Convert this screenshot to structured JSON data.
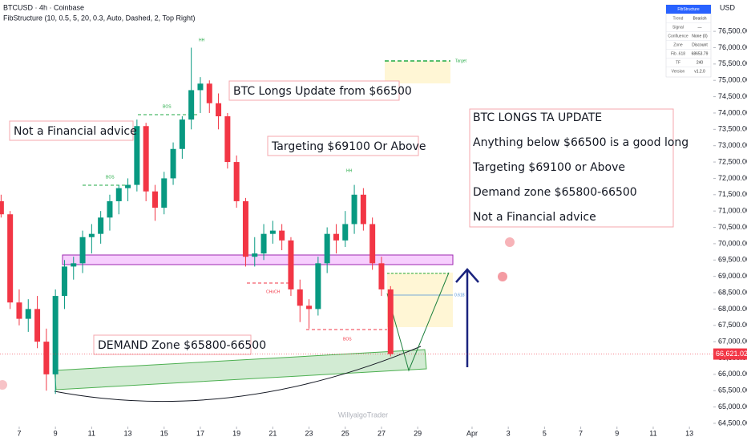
{
  "chart_data": {
    "type": "candlestick",
    "symbol": "BTCUSD · 4h · Coinbase",
    "indicator": "FibStructure (10, 0.5, 5, 20, 0.3, Auto, Dashed, 2, Top Right)",
    "currency": "USD",
    "up_color": "#089981",
    "down_color": "#f23645",
    "x": [
      -1,
      -0.5,
      0,
      0.5,
      1,
      1.5,
      2,
      2.5,
      3,
      3.5,
      4,
      4.5,
      5,
      5.5,
      6,
      6.5,
      7,
      7.5,
      8,
      8.5,
      9,
      9.5,
      10,
      10.5,
      11,
      11.5,
      12,
      12.5,
      13,
      13.5,
      14,
      14.5,
      15,
      15.5,
      16,
      16.5,
      17,
      17.5,
      18,
      18.5,
      19,
      19.5,
      20,
      20.5
    ],
    "open": [
      71300,
      70900,
      68200,
      67700,
      68000,
      67000,
      66000,
      68400,
      69300,
      69400,
      70200,
      70300,
      70800,
      71300,
      71700,
      71800,
      73600,
      71600,
      71100,
      72000,
      72900,
      73800,
      74700,
      74900,
      74300,
      73900,
      72500,
      71300,
      69600,
      69700,
      70300,
      70400,
      70100,
      68600,
      68100,
      68000,
      69400,
      70300,
      70100,
      70600,
      71500,
      70600,
      69400,
      68600
    ],
    "high": [
      71500,
      71000,
      68600,
      68300,
      68400,
      67400,
      68600,
      69500,
      69600,
      70400,
      70600,
      71000,
      71500,
      71800,
      72000,
      73800,
      73700,
      71800,
      72200,
      73100,
      73900,
      76000,
      75100,
      75000,
      74600,
      74000,
      72700,
      71400,
      70200,
      70600,
      70700,
      70600,
      70200,
      68900,
      68300,
      69600,
      70500,
      70600,
      71000,
      71800,
      71700,
      70800,
      69600,
      68700
    ],
    "low": [
      70800,
      68000,
      67500,
      67300,
      66800,
      65500,
      65400,
      68000,
      68900,
      69100,
      69700,
      70000,
      70400,
      70900,
      71300,
      71600,
      71300,
      70700,
      70900,
      71800,
      72600,
      73500,
      74000,
      74000,
      73500,
      72300,
      71100,
      69300,
      69300,
      69500,
      70000,
      69800,
      68400,
      67600,
      67400,
      67800,
      69100,
      69700,
      69900,
      70300,
      70400,
      69200,
      68400,
      66550
    ],
    "close": [
      70900,
      68200,
      67700,
      68000,
      67000,
      66000,
      68400,
      69300,
      69400,
      70200,
      70300,
      70800,
      71300,
      71700,
      71800,
      73600,
      71600,
      71100,
      72000,
      72900,
      73800,
      74700,
      74900,
      74300,
      73900,
      72500,
      71300,
      69600,
      69700,
      70300,
      70400,
      70100,
      68600,
      68100,
      68000,
      69400,
      70300,
      70100,
      70600,
      71500,
      70600,
      69400,
      68600,
      66621.02
    ],
    "last_price": {
      "value": 66621.02,
      "label": "66,621.02"
    },
    "xlim": [
      -1.06,
      38.32
    ],
    "xticks": [
      {
        "value": 0,
        "label": "7"
      },
      {
        "value": 2,
        "label": "9"
      },
      {
        "value": 4,
        "label": "11"
      },
      {
        "value": 6,
        "label": "13"
      },
      {
        "value": 8,
        "label": "15"
      },
      {
        "value": 10,
        "label": "17"
      },
      {
        "value": 12,
        "label": "19"
      },
      {
        "value": 14,
        "label": "21"
      },
      {
        "value": 16,
        "label": "23"
      },
      {
        "value": 18,
        "label": "25"
      },
      {
        "value": 20,
        "label": "27"
      },
      {
        "value": 22,
        "label": "29"
      },
      {
        "value": 25,
        "label": "Apr"
      },
      {
        "value": 27,
        "label": "3"
      },
      {
        "value": 29,
        "label": "5"
      },
      {
        "value": 31,
        "label": "7"
      },
      {
        "value": 33,
        "label": "9"
      },
      {
        "value": 35,
        "label": "11"
      },
      {
        "value": 37,
        "label": "13"
      }
    ],
    "ylim": [
      64450,
      77460
    ],
    "yticks": [
      {
        "value": 76500,
        "label": "76,500.00"
      },
      {
        "value": 76000,
        "label": "76,000.00"
      },
      {
        "value": 75500,
        "label": "75,500.00"
      },
      {
        "value": 75000,
        "label": "75,000.00"
      },
      {
        "value": 74500,
        "label": "74,500.00"
      },
      {
        "value": 74000,
        "label": "74,000.00"
      },
      {
        "value": 73500,
        "label": "73,500.00"
      },
      {
        "value": 73000,
        "label": "73,000.00"
      },
      {
        "value": 72500,
        "label": "72,500.00"
      },
      {
        "value": 72000,
        "label": "72,000.00"
      },
      {
        "value": 71500,
        "label": "71,500.00"
      },
      {
        "value": 71000,
        "label": "71,000.00"
      },
      {
        "value": 70500,
        "label": "70,500.00"
      },
      {
        "value": 70000,
        "label": "70,000.00"
      },
      {
        "value": 69500,
        "label": "69,500.00"
      },
      {
        "value": 69000,
        "label": "69,000.00"
      },
      {
        "value": 68500,
        "label": "68,500.00"
      },
      {
        "value": 68000,
        "label": "68,000.00"
      },
      {
        "value": 67500,
        "label": "67,500.00"
      },
      {
        "value": 67000,
        "label": "67,000.00"
      },
      {
        "value": 66500,
        "label": "66,500.00"
      },
      {
        "value": 66000,
        "label": "66,000.00"
      },
      {
        "value": 65500,
        "label": "65,500.00"
      },
      {
        "value": 65000,
        "label": "65,000.00"
      },
      {
        "value": 64500,
        "label": "64,500.00"
      }
    ],
    "grid": false,
    "annotations": {
      "longs_update": "BTC Longs Update from $66500",
      "disclaimer": "Not a Financial advice",
      "target": "Targeting $69100 Or Above",
      "demand": "DEMAND Zone $65800-66500"
    },
    "info_box": [
      "BTC LONGS TA UPDATE",
      "Anything below $66500 is a good long",
      "Targeting $69100 or Above",
      "Demand zone $65800-66500",
      "Not a Financial advice"
    ],
    "markers": {
      "bos": "BOS",
      "choch": "CHoCH",
      "hh": "HH",
      "target": "Target",
      "fib": "0.618"
    },
    "indicator_table": {
      "title": "FibStructure",
      "rows": [
        [
          "Trend",
          "Bearish"
        ],
        [
          "Signal",
          "—"
        ],
        [
          "Confluence",
          "None (0)"
        ],
        [
          "Zone",
          "Discount"
        ],
        [
          "Fib .618",
          "68653.79"
        ],
        [
          "TF",
          "240"
        ],
        [
          "Version",
          "v1.2.0"
        ]
      ]
    },
    "watermark": "WillyalgoTrader"
  }
}
